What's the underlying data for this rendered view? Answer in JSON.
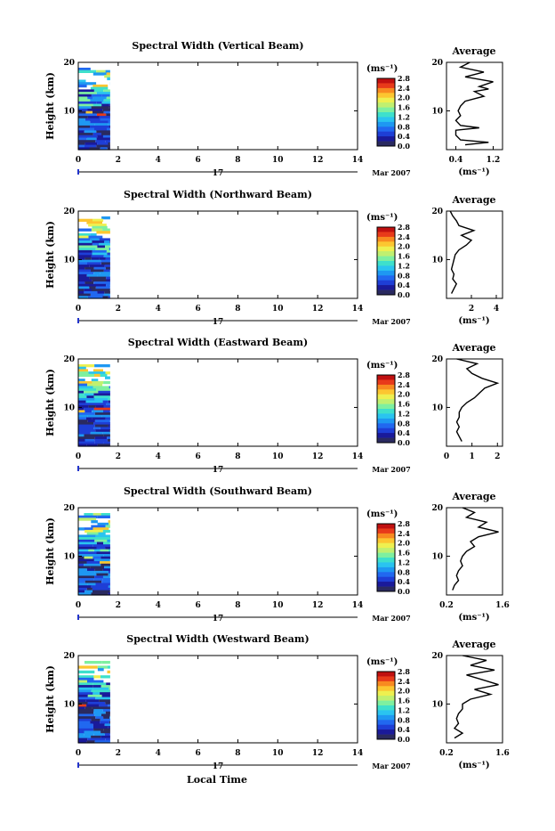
{
  "footer": {
    "xlabel": "Local Time"
  },
  "colorbar": {
    "unit": "(ms⁻¹)",
    "ticks": [
      "0.0",
      "0.4",
      "0.8",
      "1.2",
      "1.6",
      "2.0",
      "2.4",
      "2.8"
    ],
    "colors": [
      "#2a2a60",
      "#1a1a9a",
      "#1e3ed6",
      "#2168f0",
      "#1e98f2",
      "#2ac4f0",
      "#3ee0cc",
      "#7ef0a0",
      "#c0f070",
      "#eef050",
      "#fcc630",
      "#f88a20",
      "#e83a1a",
      "#c01010"
    ]
  },
  "chart_data": [
    {
      "type": "heatmap",
      "title": "Spectral Width (Vertical Beam)",
      "ylabel": "Height (km)",
      "xlim": [
        0,
        14
      ],
      "ylim": [
        2,
        20
      ],
      "xticks": [
        "0",
        "2",
        "4",
        "6",
        "8",
        "10",
        "12",
        "14"
      ],
      "yticks": [
        "10",
        "20"
      ],
      "date_day": "17",
      "date_label": "Mar 2007",
      "data_extent_hours": [
        0,
        1.6
      ],
      "profile": {
        "title": "Average",
        "xlabel": "(ms⁻¹)",
        "xlim": [
          0.2,
          1.4
        ],
        "xticks": [
          "0.4",
          "1.2"
        ],
        "yticks": [
          "10",
          "20"
        ],
        "points": [
          [
            0.6,
            3
          ],
          [
            1.1,
            3.5
          ],
          [
            0.5,
            4
          ],
          [
            0.4,
            5
          ],
          [
            0.4,
            6
          ],
          [
            0.9,
            6.5
          ],
          [
            0.5,
            7
          ],
          [
            0.4,
            8
          ],
          [
            0.5,
            9
          ],
          [
            0.45,
            10
          ],
          [
            0.5,
            11
          ],
          [
            0.6,
            12
          ],
          [
            1.0,
            13
          ],
          [
            0.8,
            14
          ],
          [
            1.1,
            14.5
          ],
          [
            0.9,
            15
          ],
          [
            1.2,
            16
          ],
          [
            0.6,
            17
          ],
          [
            1.0,
            18
          ],
          [
            0.5,
            19
          ],
          [
            0.7,
            20
          ]
        ]
      }
    },
    {
      "type": "heatmap",
      "title": "Spectral Width (Northward Beam)",
      "ylabel": "Height (km)",
      "xlim": [
        0,
        14
      ],
      "ylim": [
        2,
        20
      ],
      "xticks": [
        "0",
        "2",
        "4",
        "6",
        "8",
        "10",
        "12",
        "14"
      ],
      "yticks": [
        "10",
        "20"
      ],
      "date_day": "17",
      "date_label": "Mar 2007",
      "data_extent_hours": [
        0,
        1.6
      ],
      "profile": {
        "title": "Average",
        "xlabel": "(ms⁻¹)",
        "xlim": [
          0,
          4.5
        ],
        "xticks": [
          "2",
          "4"
        ],
        "yticks": [
          "10",
          "20"
        ],
        "points": [
          [
            0.4,
            3
          ],
          [
            0.6,
            4
          ],
          [
            0.8,
            5
          ],
          [
            0.5,
            6
          ],
          [
            0.6,
            7
          ],
          [
            0.4,
            8
          ],
          [
            0.5,
            9
          ],
          [
            0.6,
            10
          ],
          [
            0.7,
            11
          ],
          [
            1.0,
            12
          ],
          [
            1.6,
            13
          ],
          [
            2.0,
            14
          ],
          [
            1.2,
            15
          ],
          [
            2.2,
            16
          ],
          [
            1.0,
            17
          ],
          [
            0.8,
            18
          ],
          [
            0.5,
            19
          ],
          [
            0.3,
            20
          ]
        ]
      }
    },
    {
      "type": "heatmap",
      "title": "Spectral Width (Eastward Beam)",
      "ylabel": "Height (km)",
      "xlim": [
        0,
        14
      ],
      "ylim": [
        2,
        20
      ],
      "xticks": [
        "0",
        "2",
        "4",
        "6",
        "8",
        "10",
        "12",
        "14"
      ],
      "yticks": [
        "10",
        "20"
      ],
      "date_day": "17",
      "date_label": "Mar 2007",
      "data_extent_hours": [
        0,
        1.6
      ],
      "profile": {
        "title": "Average",
        "xlabel": "",
        "xlim": [
          0,
          2.2
        ],
        "xticks": [
          "0",
          "1",
          "2"
        ],
        "yticks": [
          "10",
          "20"
        ],
        "points": [
          [
            0.6,
            3
          ],
          [
            0.5,
            4
          ],
          [
            0.4,
            5
          ],
          [
            0.5,
            6
          ],
          [
            0.4,
            7
          ],
          [
            0.5,
            8
          ],
          [
            0.5,
            9
          ],
          [
            0.6,
            10
          ],
          [
            0.8,
            11
          ],
          [
            1.1,
            12
          ],
          [
            1.3,
            13
          ],
          [
            1.5,
            14
          ],
          [
            2.0,
            15
          ],
          [
            1.4,
            16
          ],
          [
            1.0,
            17
          ],
          [
            0.8,
            18
          ],
          [
            1.2,
            19
          ],
          [
            0.4,
            20
          ]
        ]
      }
    },
    {
      "type": "heatmap",
      "title": "Spectral Width (Southward Beam)",
      "ylabel": "Height (km)",
      "xlim": [
        0,
        14
      ],
      "ylim": [
        2,
        20
      ],
      "xticks": [
        "0",
        "2",
        "4",
        "6",
        "8",
        "10",
        "12",
        "14"
      ],
      "yticks": [
        "10",
        "20"
      ],
      "date_day": "17",
      "date_label": "Mar 2007",
      "data_extent_hours": [
        0,
        1.6
      ],
      "profile": {
        "title": "Average",
        "xlabel": "(ms⁻¹)",
        "xlim": [
          0.2,
          1.6
        ],
        "xticks": [
          "0.2",
          "1.6"
        ],
        "yticks": [
          "10",
          "20"
        ],
        "points": [
          [
            0.35,
            3
          ],
          [
            0.4,
            4
          ],
          [
            0.5,
            5
          ],
          [
            0.45,
            6
          ],
          [
            0.5,
            7
          ],
          [
            0.6,
            8
          ],
          [
            0.55,
            9
          ],
          [
            0.6,
            10
          ],
          [
            0.7,
            11
          ],
          [
            0.9,
            12
          ],
          [
            0.8,
            13
          ],
          [
            1.0,
            14
          ],
          [
            1.5,
            15
          ],
          [
            1.0,
            16
          ],
          [
            1.2,
            17
          ],
          [
            0.7,
            18
          ],
          [
            0.9,
            19
          ],
          [
            0.6,
            20
          ]
        ]
      }
    },
    {
      "type": "heatmap",
      "title": "Spectral Width (Westward Beam)",
      "ylabel": "Height (km)",
      "xlim": [
        0,
        14
      ],
      "ylim": [
        2,
        20
      ],
      "xticks": [
        "0",
        "2",
        "4",
        "6",
        "8",
        "10",
        "12",
        "14"
      ],
      "yticks": [
        "10",
        "20"
      ],
      "date_day": "17",
      "date_label": "Mar 2007",
      "data_extent_hours": [
        0,
        1.6
      ],
      "profile": {
        "title": "Average",
        "xlabel": "(ms⁻¹)",
        "xlim": [
          0.2,
          1.6
        ],
        "xticks": [
          "0.2",
          "1.6"
        ],
        "yticks": [
          "10",
          "20"
        ],
        "points": [
          [
            0.4,
            3
          ],
          [
            0.6,
            4
          ],
          [
            0.4,
            5
          ],
          [
            0.5,
            6
          ],
          [
            0.45,
            7
          ],
          [
            0.5,
            8
          ],
          [
            0.6,
            9
          ],
          [
            0.6,
            10
          ],
          [
            0.8,
            11
          ],
          [
            1.3,
            12
          ],
          [
            0.9,
            13
          ],
          [
            1.5,
            14
          ],
          [
            1.1,
            15
          ],
          [
            0.7,
            16
          ],
          [
            1.4,
            17
          ],
          [
            0.8,
            18
          ],
          [
            1.2,
            19
          ],
          [
            0.6,
            20
          ]
        ]
      }
    }
  ]
}
